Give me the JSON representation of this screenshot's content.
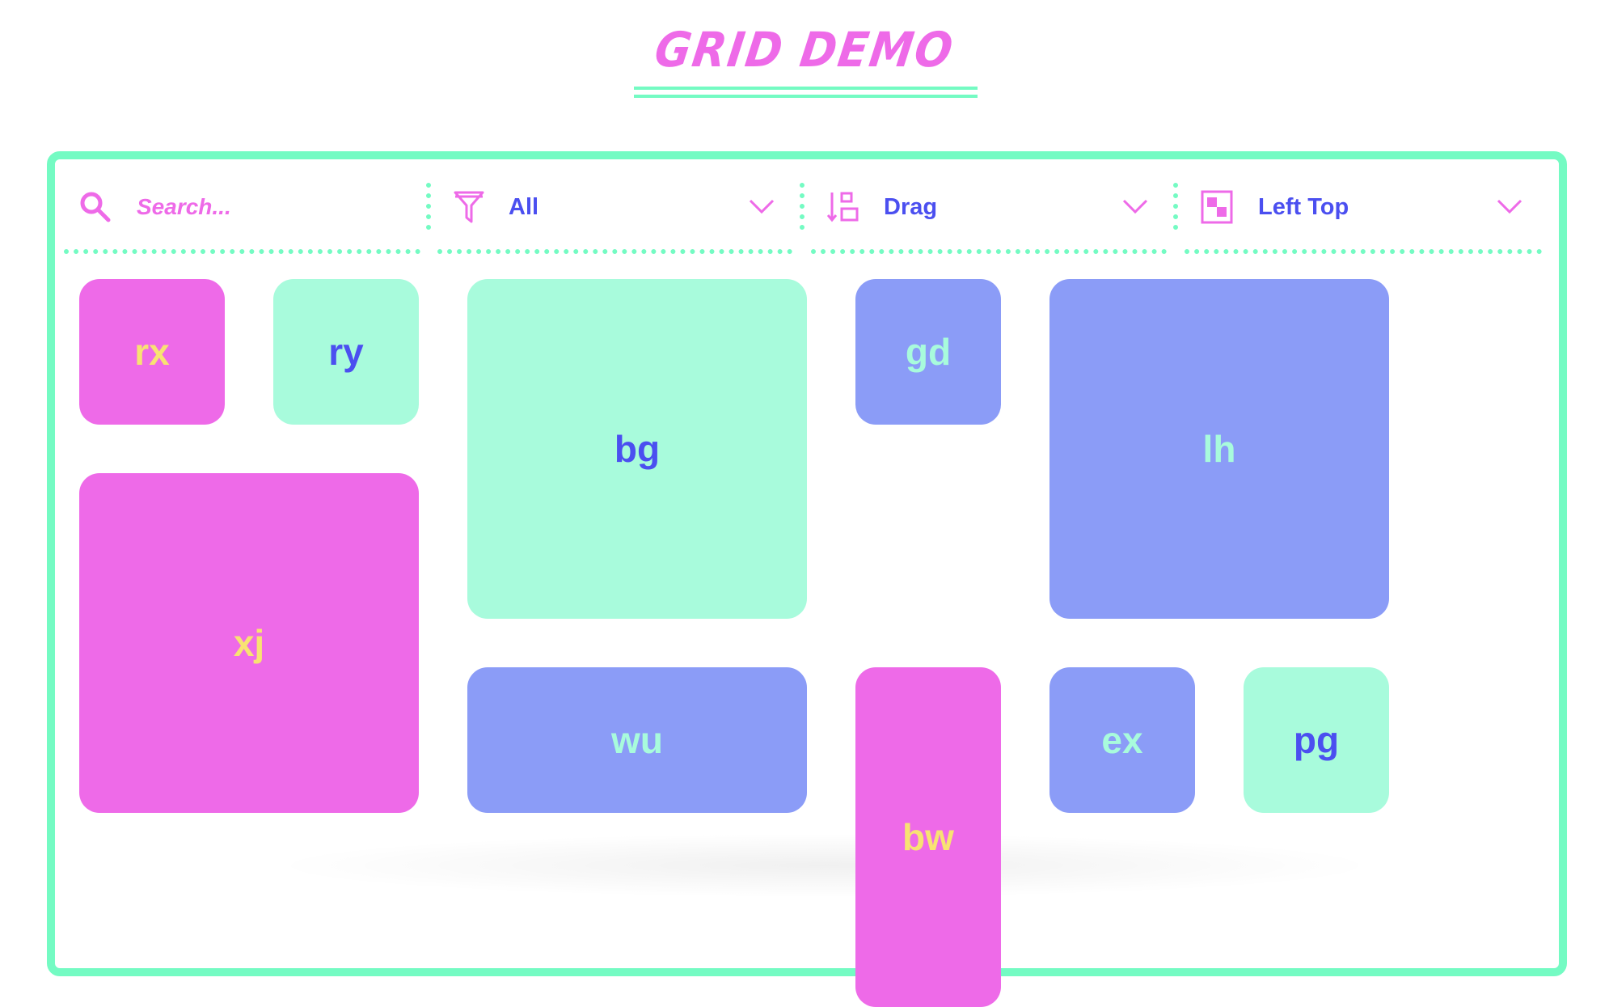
{
  "header": {
    "title": "GRID DEMO"
  },
  "toolbar": {
    "search": {
      "placeholder": "Search...",
      "icon": "search-icon"
    },
    "filter": {
      "value": "All",
      "icon": "filter-icon"
    },
    "sort": {
      "value": "Drag",
      "icon": "sort-icon"
    },
    "layout": {
      "value": "Left Top",
      "icon": "layout-icon"
    }
  },
  "colors": {
    "pink": "#ee6ae8",
    "mint": "#a8fbdc",
    "periwinkle": "#8b9cf7",
    "blue": "#4b4ff0",
    "yellow": "#f8e273",
    "border": "#74fbc3"
  },
  "tiles": [
    {
      "label": "rx",
      "color": "pink"
    },
    {
      "label": "ry",
      "color": "mint"
    },
    {
      "label": "bg",
      "color": "mint"
    },
    {
      "label": "gd",
      "color": "periwinkle"
    },
    {
      "label": "lh",
      "color": "periwinkle"
    },
    {
      "label": "xj",
      "color": "pink"
    },
    {
      "label": "wu",
      "color": "periwinkle"
    },
    {
      "label": "bw",
      "color": "pink"
    },
    {
      "label": "ex",
      "color": "periwinkle"
    },
    {
      "label": "pg",
      "color": "mint"
    }
  ]
}
